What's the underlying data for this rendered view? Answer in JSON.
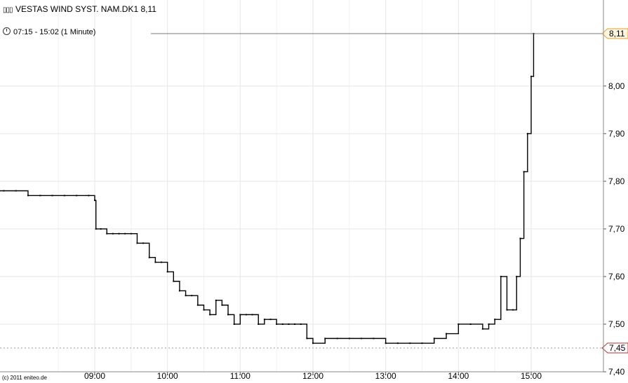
{
  "header": {
    "title": "VESTAS WIND SYST. NAM.DK1 8,11",
    "timeframe": "07:15 - 15:02 (1 Minute)",
    "copyright": "(c) 2011 eniteo.de"
  },
  "chart_data": {
    "type": "line",
    "title": "VESTAS WIND SYST. NAM.DK1 8,11",
    "subtitle": "07:15 - 15:02 (1 Minute)",
    "xlabel": "",
    "ylabel": "",
    "x_ticks": [
      "09:00",
      "10:00",
      "11:00",
      "12:00",
      "13:00",
      "14:00",
      "15:00"
    ],
    "y_ticks": [
      "7,40",
      "7,50",
      "7,60",
      "7,70",
      "7,80",
      "7,90",
      "8,00"
    ],
    "ylim": [
      7.4,
      8.11
    ],
    "grid": true,
    "last_value_label": "8,11",
    "reference_value_label": "7,45",
    "last_value": 8.11,
    "reference_value": 7.45,
    "colors": {
      "line": "#000000",
      "grid": "#e8e8e8",
      "last_marker": "#e8a020",
      "ref_marker": "#c03030"
    },
    "series": [
      {
        "x": [
          "07:15",
          "07:25",
          "07:35",
          "07:45",
          "07:55",
          "08:05",
          "08:15",
          "08:25",
          "08:35",
          "08:45",
          "08:55",
          "09:00",
          "09:01",
          "09:05",
          "09:10",
          "09:15",
          "09:20",
          "09:25",
          "09:30",
          "09:35",
          "09:40",
          "09:45",
          "09:50",
          "09:55",
          "10:00",
          "10:05",
          "10:10",
          "10:15",
          "10:20",
          "10:25",
          "10:30",
          "10:35",
          "10:40",
          "10:45",
          "10:50",
          "10:55",
          "11:00",
          "11:05",
          "11:10",
          "11:15",
          "11:20",
          "11:25",
          "11:30",
          "11:35",
          "11:40",
          "11:45",
          "11:50",
          "11:55",
          "12:00",
          "12:10",
          "12:20",
          "12:30",
          "12:40",
          "12:50",
          "13:00",
          "13:10",
          "13:20",
          "13:30",
          "13:40",
          "13:50",
          "14:00",
          "14:10",
          "14:20",
          "14:25",
          "14:30",
          "14:35",
          "14:40",
          "14:45",
          "14:48",
          "14:51",
          "14:54",
          "14:57",
          "15:00",
          "15:02"
        ],
        "values": [
          7.76,
          7.76,
          7.78,
          7.78,
          7.78,
          7.77,
          7.77,
          7.77,
          7.77,
          7.77,
          7.77,
          7.76,
          7.7,
          7.7,
          7.69,
          7.69,
          7.69,
          7.69,
          7.69,
          7.67,
          7.67,
          7.64,
          7.63,
          7.63,
          7.61,
          7.59,
          7.57,
          7.56,
          7.56,
          7.54,
          7.53,
          7.52,
          7.55,
          7.54,
          7.52,
          7.5,
          7.52,
          7.52,
          7.52,
          7.5,
          7.51,
          7.51,
          7.5,
          7.5,
          7.5,
          7.5,
          7.5,
          7.47,
          7.46,
          7.47,
          7.47,
          7.47,
          7.47,
          7.47,
          7.46,
          7.46,
          7.46,
          7.46,
          7.47,
          7.48,
          7.5,
          7.5,
          7.49,
          7.5,
          7.51,
          7.6,
          7.53,
          7.53,
          7.6,
          7.68,
          7.82,
          7.9,
          8.02,
          8.11
        ]
      }
    ]
  }
}
